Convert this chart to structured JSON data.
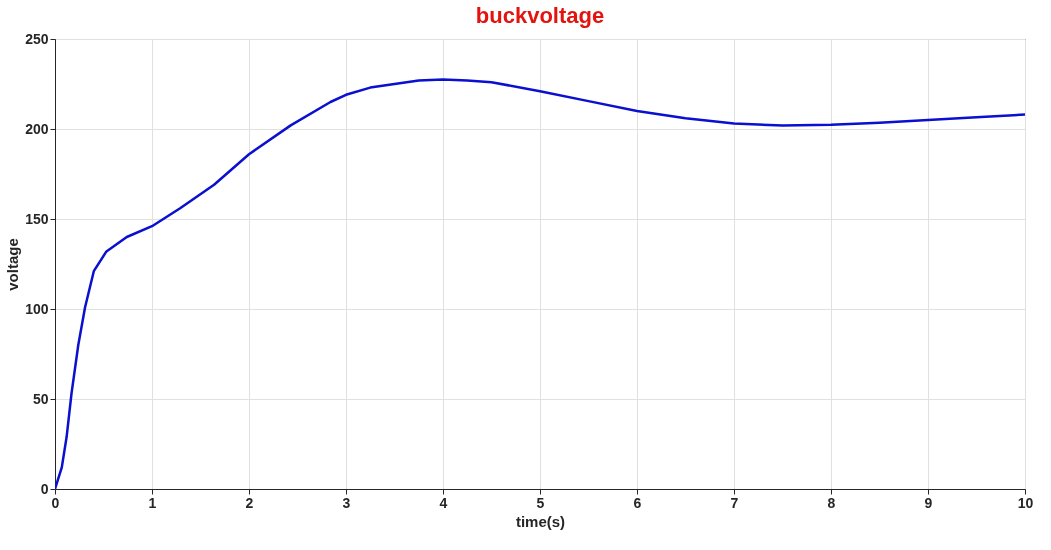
{
  "chart_data": {
    "type": "line",
    "title": "buckvoltage",
    "xlabel": "time(s)",
    "ylabel": "voltage",
    "x": [
      0,
      0.07,
      0.12,
      0.17,
      0.24,
      0.31,
      0.4,
      0.53,
      0.74,
      1.0,
      1.29,
      1.64,
      2.0,
      2.43,
      2.84,
      3.0,
      3.25,
      3.5,
      3.75,
      4.0,
      4.25,
      4.5,
      5.0,
      5.5,
      6.0,
      6.5,
      7.0,
      7.5,
      8.0,
      8.5,
      9.0,
      9.5,
      10.0
    ],
    "series": [
      {
        "color": "#0a0fd0",
        "values": [
          0,
          12,
          29,
          53,
          80,
          101,
          121,
          132,
          140,
          146,
          156,
          169,
          186,
          202,
          215,
          219,
          223,
          225,
          227,
          227.5,
          227,
          226,
          221,
          215.5,
          210,
          206,
          203,
          202,
          202.3,
          203.5,
          205,
          206.5,
          208
        ]
      }
    ],
    "xlim": [
      0,
      10
    ],
    "ylim": [
      0,
      250
    ],
    "xticks": [
      0,
      1,
      2,
      3,
      4,
      5,
      6,
      7,
      8,
      9,
      10
    ],
    "yticks": [
      0,
      50,
      100,
      150,
      200,
      250
    ],
    "grid": true,
    "marker": "none",
    "line_style": "solid"
  }
}
